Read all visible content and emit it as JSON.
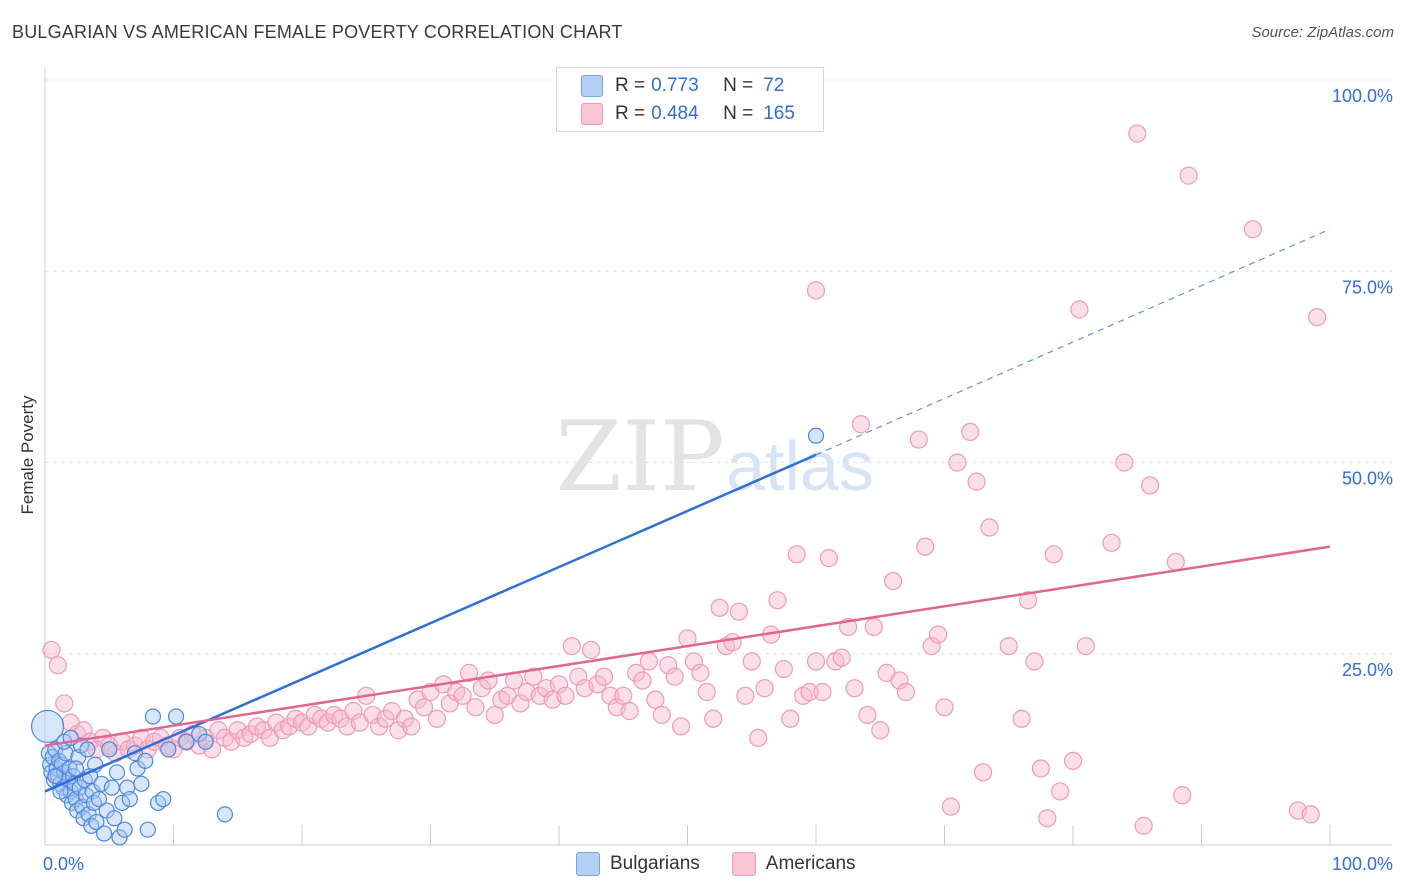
{
  "title": "BULGARIAN VS AMERICAN FEMALE POVERTY CORRELATION CHART",
  "source": "Source: ZipAtlas.com",
  "watermark": {
    "zip": "ZIP",
    "atlas": "atlas"
  },
  "legend": {
    "rows": [
      {
        "r_label": "R =",
        "r_value": "0.773",
        "n_label": "N =",
        "n_value": "72",
        "color": "#a9c8f2"
      },
      {
        "r_label": "R =",
        "r_value": "0.484",
        "n_label": "N =",
        "n_value": "165",
        "color": "#f7b8cb"
      }
    ]
  },
  "bottom_legend": {
    "items": [
      "Bulgarians",
      "Americans"
    ]
  },
  "colors": {
    "bulgarians": "#2f6fd6",
    "americans": "#e06690",
    "accent_text": "#2f6fd6"
  },
  "chart_data": {
    "type": "scatter",
    "title": "BULGARIAN VS AMERICAN FEMALE POVERTY CORRELATION CHART",
    "xlabel": "",
    "ylabel": "Female Poverty",
    "xlim": [
      0,
      100
    ],
    "ylim": [
      0,
      100
    ],
    "x_tick_labels": [
      "0.0%",
      "100.0%"
    ],
    "y_tick_labels": [
      "25.0%",
      "50.0%",
      "75.0%",
      "100.0%"
    ],
    "y_ticks": [
      25,
      50,
      75,
      100
    ],
    "grid": true,
    "legend_position": "top-center",
    "series": [
      {
        "name": "Bulgarians",
        "color": "#2f6fd6",
        "R": 0.773,
        "N": 72,
        "trend": {
          "x": [
            0,
            60
          ],
          "y": [
            7.0,
            51.0
          ],
          "dashed_to": [
            100,
            80.5
          ]
        },
        "points": [
          [
            0.2,
            15.5
          ],
          [
            0.3,
            12.0
          ],
          [
            0.4,
            10.5
          ],
          [
            0.5,
            9.5
          ],
          [
            0.6,
            11.5
          ],
          [
            0.7,
            8.5
          ],
          [
            0.8,
            12.5
          ],
          [
            0.9,
            10.0
          ],
          [
            1.0,
            9.0
          ],
          [
            1.1,
            11.0
          ],
          [
            1.2,
            8.0
          ],
          [
            1.3,
            10.5
          ],
          [
            1.4,
            7.5
          ],
          [
            1.5,
            9.5
          ],
          [
            1.6,
            12.0
          ],
          [
            1.7,
            6.5
          ],
          [
            1.8,
            8.5
          ],
          [
            1.9,
            10.0
          ],
          [
            2.0,
            7.0
          ],
          [
            2.1,
            5.5
          ],
          [
            2.2,
            9.0
          ],
          [
            2.3,
            8.0
          ],
          [
            2.4,
            6.0
          ],
          [
            2.5,
            4.5
          ],
          [
            2.6,
            11.5
          ],
          [
            2.7,
            7.5
          ],
          [
            2.8,
            13.0
          ],
          [
            2.9,
            5.0
          ],
          [
            3.0,
            3.5
          ],
          [
            3.1,
            8.5
          ],
          [
            3.2,
            6.5
          ],
          [
            3.3,
            12.5
          ],
          [
            3.4,
            4.0
          ],
          [
            3.5,
            9.0
          ],
          [
            3.6,
            2.5
          ],
          [
            3.7,
            7.0
          ],
          [
            3.8,
            5.5
          ],
          [
            3.9,
            10.5
          ],
          [
            4.0,
            3.0
          ],
          [
            4.2,
            6.0
          ],
          [
            4.4,
            8.0
          ],
          [
            4.6,
            1.5
          ],
          [
            4.8,
            4.5
          ],
          [
            5.0,
            12.5
          ],
          [
            5.2,
            7.5
          ],
          [
            5.4,
            3.5
          ],
          [
            5.6,
            9.5
          ],
          [
            5.8,
            1.0
          ],
          [
            6.0,
            5.5
          ],
          [
            6.2,
            2.0
          ],
          [
            6.4,
            7.5
          ],
          [
            6.6,
            6.0
          ],
          [
            7.0,
            12.0
          ],
          [
            7.2,
            10.0
          ],
          [
            7.5,
            8.0
          ],
          [
            7.8,
            11.0
          ],
          [
            8.0,
            2.0
          ],
          [
            8.4,
            16.8
          ],
          [
            8.8,
            5.5
          ],
          [
            9.2,
            6.0
          ],
          [
            9.6,
            12.5
          ],
          [
            10.2,
            16.8
          ],
          [
            11.0,
            13.5
          ],
          [
            12.0,
            14.5
          ],
          [
            12.5,
            13.5
          ],
          [
            14.0,
            4.0
          ],
          [
            1.5,
            13.5
          ],
          [
            2.0,
            14.0
          ],
          [
            0.8,
            9.0
          ],
          [
            1.2,
            7.0
          ],
          [
            2.4,
            10.0
          ],
          [
            60.0,
            53.5
          ]
        ]
      },
      {
        "name": "Americans",
        "color": "#e06690",
        "R": 0.484,
        "N": 165,
        "trend": {
          "x": [
            0,
            100
          ],
          "y": [
            13.0,
            39.0
          ]
        },
        "points": [
          [
            0.5,
            25.5
          ],
          [
            1.0,
            23.5
          ],
          [
            1.5,
            18.5
          ],
          [
            2.0,
            16.0
          ],
          [
            2.5,
            14.5
          ],
          [
            3.0,
            15.0
          ],
          [
            3.5,
            13.5
          ],
          [
            4.0,
            12.5
          ],
          [
            4.5,
            14.0
          ],
          [
            5.0,
            13.0
          ],
          [
            5.5,
            12.0
          ],
          [
            6.0,
            13.5
          ],
          [
            6.5,
            12.5
          ],
          [
            7.0,
            13.0
          ],
          [
            7.5,
            14.0
          ],
          [
            8.0,
            12.5
          ],
          [
            8.5,
            13.5
          ],
          [
            9.0,
            14.0
          ],
          [
            9.5,
            13.0
          ],
          [
            10.0,
            12.5
          ],
          [
            10.5,
            14.0
          ],
          [
            11.0,
            13.5
          ],
          [
            11.5,
            14.5
          ],
          [
            12.0,
            13.0
          ],
          [
            12.5,
            14.0
          ],
          [
            13.0,
            12.5
          ],
          [
            13.5,
            15.0
          ],
          [
            14.0,
            14.0
          ],
          [
            14.5,
            13.5
          ],
          [
            15.0,
            15.0
          ],
          [
            15.5,
            14.0
          ],
          [
            16.0,
            14.5
          ],
          [
            16.5,
            15.5
          ],
          [
            17.0,
            15.0
          ],
          [
            17.5,
            14.0
          ],
          [
            18.0,
            16.0
          ],
          [
            18.5,
            15.0
          ],
          [
            19.0,
            15.5
          ],
          [
            19.5,
            16.5
          ],
          [
            20.0,
            16.0
          ],
          [
            20.5,
            15.5
          ],
          [
            21.0,
            17.0
          ],
          [
            21.5,
            16.5
          ],
          [
            22.0,
            16.0
          ],
          [
            22.5,
            17.0
          ],
          [
            23.0,
            16.5
          ],
          [
            23.5,
            15.5
          ],
          [
            24.0,
            17.5
          ],
          [
            24.5,
            16.0
          ],
          [
            25.0,
            19.5
          ],
          [
            25.5,
            17.0
          ],
          [
            26.0,
            15.5
          ],
          [
            26.5,
            16.5
          ],
          [
            27.0,
            17.5
          ],
          [
            27.5,
            15.0
          ],
          [
            28.0,
            16.5
          ],
          [
            28.5,
            15.5
          ],
          [
            29.0,
            19.0
          ],
          [
            29.5,
            18.0
          ],
          [
            30.0,
            20.0
          ],
          [
            30.5,
            16.5
          ],
          [
            31.0,
            21.0
          ],
          [
            31.5,
            18.5
          ],
          [
            32.0,
            20.0
          ],
          [
            32.5,
            19.5
          ],
          [
            33.0,
            22.5
          ],
          [
            33.5,
            18.0
          ],
          [
            34.0,
            20.5
          ],
          [
            34.5,
            21.5
          ],
          [
            35.0,
            17.0
          ],
          [
            35.5,
            19.0
          ],
          [
            36.0,
            19.5
          ],
          [
            36.5,
            21.5
          ],
          [
            37.0,
            18.5
          ],
          [
            37.5,
            20.0
          ],
          [
            38.0,
            22.0
          ],
          [
            38.5,
            19.5
          ],
          [
            39.0,
            20.5
          ],
          [
            39.5,
            19.0
          ],
          [
            40.0,
            21.0
          ],
          [
            40.5,
            19.5
          ],
          [
            41.0,
            26.0
          ],
          [
            41.5,
            22.0
          ],
          [
            42.0,
            20.5
          ],
          [
            42.5,
            25.5
          ],
          [
            43.0,
            21.0
          ],
          [
            43.5,
            22.0
          ],
          [
            44.0,
            19.5
          ],
          [
            44.5,
            18.0
          ],
          [
            45.0,
            19.5
          ],
          [
            45.5,
            17.5
          ],
          [
            46.0,
            22.5
          ],
          [
            46.5,
            21.5
          ],
          [
            47.0,
            24.0
          ],
          [
            47.5,
            19.0
          ],
          [
            48.0,
            17.0
          ],
          [
            48.5,
            23.5
          ],
          [
            49.0,
            22.0
          ],
          [
            49.5,
            15.5
          ],
          [
            50.0,
            27.0
          ],
          [
            50.5,
            24.0
          ],
          [
            51.0,
            22.5
          ],
          [
            51.5,
            20.0
          ],
          [
            52.0,
            16.5
          ],
          [
            52.5,
            31.0
          ],
          [
            53.0,
            26.0
          ],
          [
            53.5,
            26.5
          ],
          [
            54.0,
            30.5
          ],
          [
            54.5,
            19.5
          ],
          [
            55.0,
            24.0
          ],
          [
            55.5,
            14.0
          ],
          [
            56.0,
            20.5
          ],
          [
            56.5,
            27.5
          ],
          [
            57.0,
            32.0
          ],
          [
            57.5,
            23.0
          ],
          [
            58.0,
            16.5
          ],
          [
            58.5,
            38.0
          ],
          [
            59.0,
            19.5
          ],
          [
            59.5,
            20.0
          ],
          [
            60.0,
            24.0
          ],
          [
            60.5,
            20.0
          ],
          [
            61.0,
            37.5
          ],
          [
            61.5,
            24.0
          ],
          [
            62.0,
            24.5
          ],
          [
            62.5,
            28.5
          ],
          [
            63.0,
            20.5
          ],
          [
            63.5,
            55.0
          ],
          [
            64.0,
            17.0
          ],
          [
            64.5,
            28.5
          ],
          [
            65.0,
            15.0
          ],
          [
            65.5,
            22.5
          ],
          [
            66.0,
            34.5
          ],
          [
            66.5,
            21.5
          ],
          [
            67.0,
            20.0
          ],
          [
            68.0,
            53.0
          ],
          [
            68.5,
            39.0
          ],
          [
            69.0,
            26.0
          ],
          [
            69.5,
            27.5
          ],
          [
            70.0,
            18.0
          ],
          [
            70.5,
            5.0
          ],
          [
            71.0,
            50.0
          ],
          [
            72.0,
            54.0
          ],
          [
            72.5,
            47.5
          ],
          [
            73.0,
            9.5
          ],
          [
            73.5,
            41.5
          ],
          [
            75.0,
            26.0
          ],
          [
            76.0,
            16.5
          ],
          [
            76.5,
            32.0
          ],
          [
            77.0,
            24.0
          ],
          [
            77.5,
            10.0
          ],
          [
            78.0,
            3.5
          ],
          [
            78.5,
            38.0
          ],
          [
            79.0,
            7.0
          ],
          [
            80.0,
            11.0
          ],
          [
            80.5,
            70.0
          ],
          [
            81.0,
            26.0
          ],
          [
            83.0,
            39.5
          ],
          [
            84.0,
            50.0
          ],
          [
            85.0,
            93.0
          ],
          [
            85.5,
            2.5
          ],
          [
            86.0,
            47.0
          ],
          [
            88.0,
            37.0
          ],
          [
            88.5,
            6.5
          ],
          [
            89.0,
            87.5
          ],
          [
            94.0,
            80.5
          ],
          [
            97.5,
            4.5
          ],
          [
            98.5,
            4.0
          ],
          [
            60.0,
            72.5
          ],
          [
            99.0,
            69.0
          ]
        ]
      }
    ]
  }
}
